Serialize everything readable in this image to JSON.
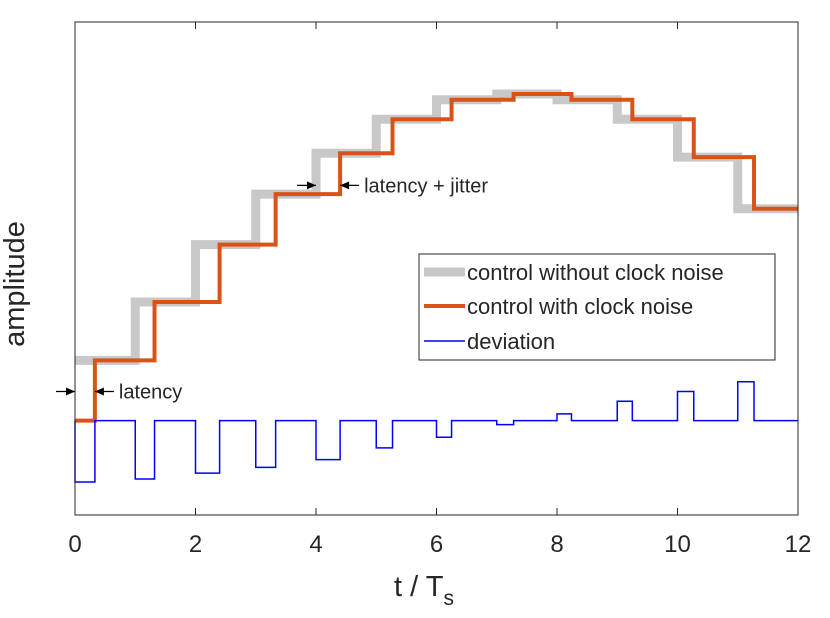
{
  "chart_data": {
    "type": "line",
    "title": "",
    "xlabel": "t / T",
    "xlabel_subscript": "s",
    "ylabel": "amplitude",
    "xlim": [
      0,
      12
    ],
    "ylim": [
      -0.97,
      4.1
    ],
    "xticks": [
      "0",
      "2",
      "4",
      "6",
      "8",
      "10",
      "12"
    ],
    "xtick_values": [
      0,
      2,
      4,
      6,
      8,
      10,
      12
    ],
    "yticks_shown": false,
    "grid": false,
    "legend_position": "middle-right",
    "series": [
      {
        "name": "control without clock noise",
        "style": "stairs",
        "color": "#c8c8c8",
        "edges": [
          0,
          1,
          2,
          3,
          4,
          5,
          6,
          7,
          8,
          9,
          10,
          11,
          12
        ],
        "values": [
          0.62,
          1.22,
          1.81,
          2.33,
          2.75,
          3.1,
          3.3,
          3.36,
          3.3,
          3.1,
          2.71,
          2.18
        ],
        "initial_value": 0.62
      },
      {
        "name": "control with clock noise",
        "style": "stairs",
        "color": "#d95319",
        "edges": [
          0.33,
          1.32,
          2.4,
          3.33,
          4.4,
          5.27,
          6.25,
          7.28,
          8.24,
          9.25,
          10.27,
          11.27,
          12
        ],
        "values": [
          0.62,
          1.22,
          1.81,
          2.33,
          2.75,
          3.1,
          3.3,
          3.36,
          3.3,
          3.1,
          2.71,
          2.18
        ],
        "initial_value": 0
      },
      {
        "name": "deviation",
        "style": "stairs",
        "color": "#0000ff",
        "baseline": 0,
        "pulses": [
          {
            "start": 0,
            "end": 0.33,
            "value": -0.63
          },
          {
            "start": 1,
            "end": 1.32,
            "value": -0.6
          },
          {
            "start": 2,
            "end": 2.4,
            "value": -0.54
          },
          {
            "start": 3,
            "end": 3.33,
            "value": -0.48
          },
          {
            "start": 4,
            "end": 4.4,
            "value": -0.4
          },
          {
            "start": 5,
            "end": 5.27,
            "value": -0.28
          },
          {
            "start": 6,
            "end": 6.25,
            "value": -0.17
          },
          {
            "start": 7,
            "end": 7.28,
            "value": -0.04
          },
          {
            "start": 8,
            "end": 8.24,
            "value": 0.07
          },
          {
            "start": 9,
            "end": 9.25,
            "value": 0.2
          },
          {
            "start": 10,
            "end": 10.27,
            "value": 0.3
          },
          {
            "start": 11,
            "end": 11.27,
            "value": 0.4
          }
        ]
      }
    ],
    "annotations": [
      {
        "text": "latency",
        "span": [
          0,
          0.33
        ],
        "level": 0.3
      },
      {
        "text": "latency + jitter",
        "span": [
          4,
          4.4
        ],
        "level": 2.42
      }
    ]
  }
}
